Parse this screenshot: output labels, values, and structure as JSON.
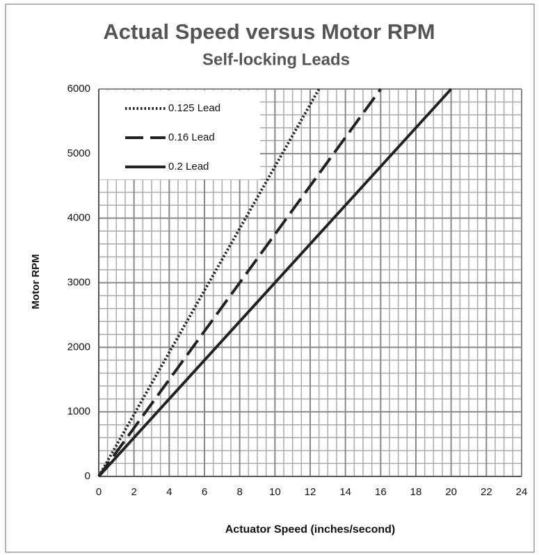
{
  "chart_data": {
    "type": "line",
    "title": "Actual Speed versus Motor RPM",
    "subtitle": "Self-locking Leads",
    "x_label": "Actuator Speed (inches/second)",
    "y_label": "Motor RPM",
    "series": [
      {
        "name": "0.125 Lead",
        "color": "#222222",
        "style": "dotted",
        "x": [
          0,
          12.5
        ],
        "values": [
          0,
          6000
        ]
      },
      {
        "name": "0.16 Lead",
        "color": "#222222",
        "style": "dashed",
        "x": [
          0,
          16
        ],
        "values": [
          0,
          6000
        ]
      },
      {
        "name": "0.2 Lead",
        "color": "#222222",
        "style": "solid",
        "x": [
          0,
          20
        ],
        "values": [
          0,
          6000
        ]
      }
    ],
    "xlim": [
      0,
      24
    ],
    "xticks": [
      0,
      2,
      4,
      6,
      8,
      10,
      12,
      14,
      16,
      18,
      20,
      22,
      24
    ],
    "ylim": [
      0,
      6000
    ],
    "yticks": [
      0,
      1000,
      2000,
      3000,
      4000,
      5000,
      6000
    ],
    "grid": true,
    "x_minor_per_major": 4,
    "y_minor_per_major": 5,
    "legend": "top-left"
  }
}
